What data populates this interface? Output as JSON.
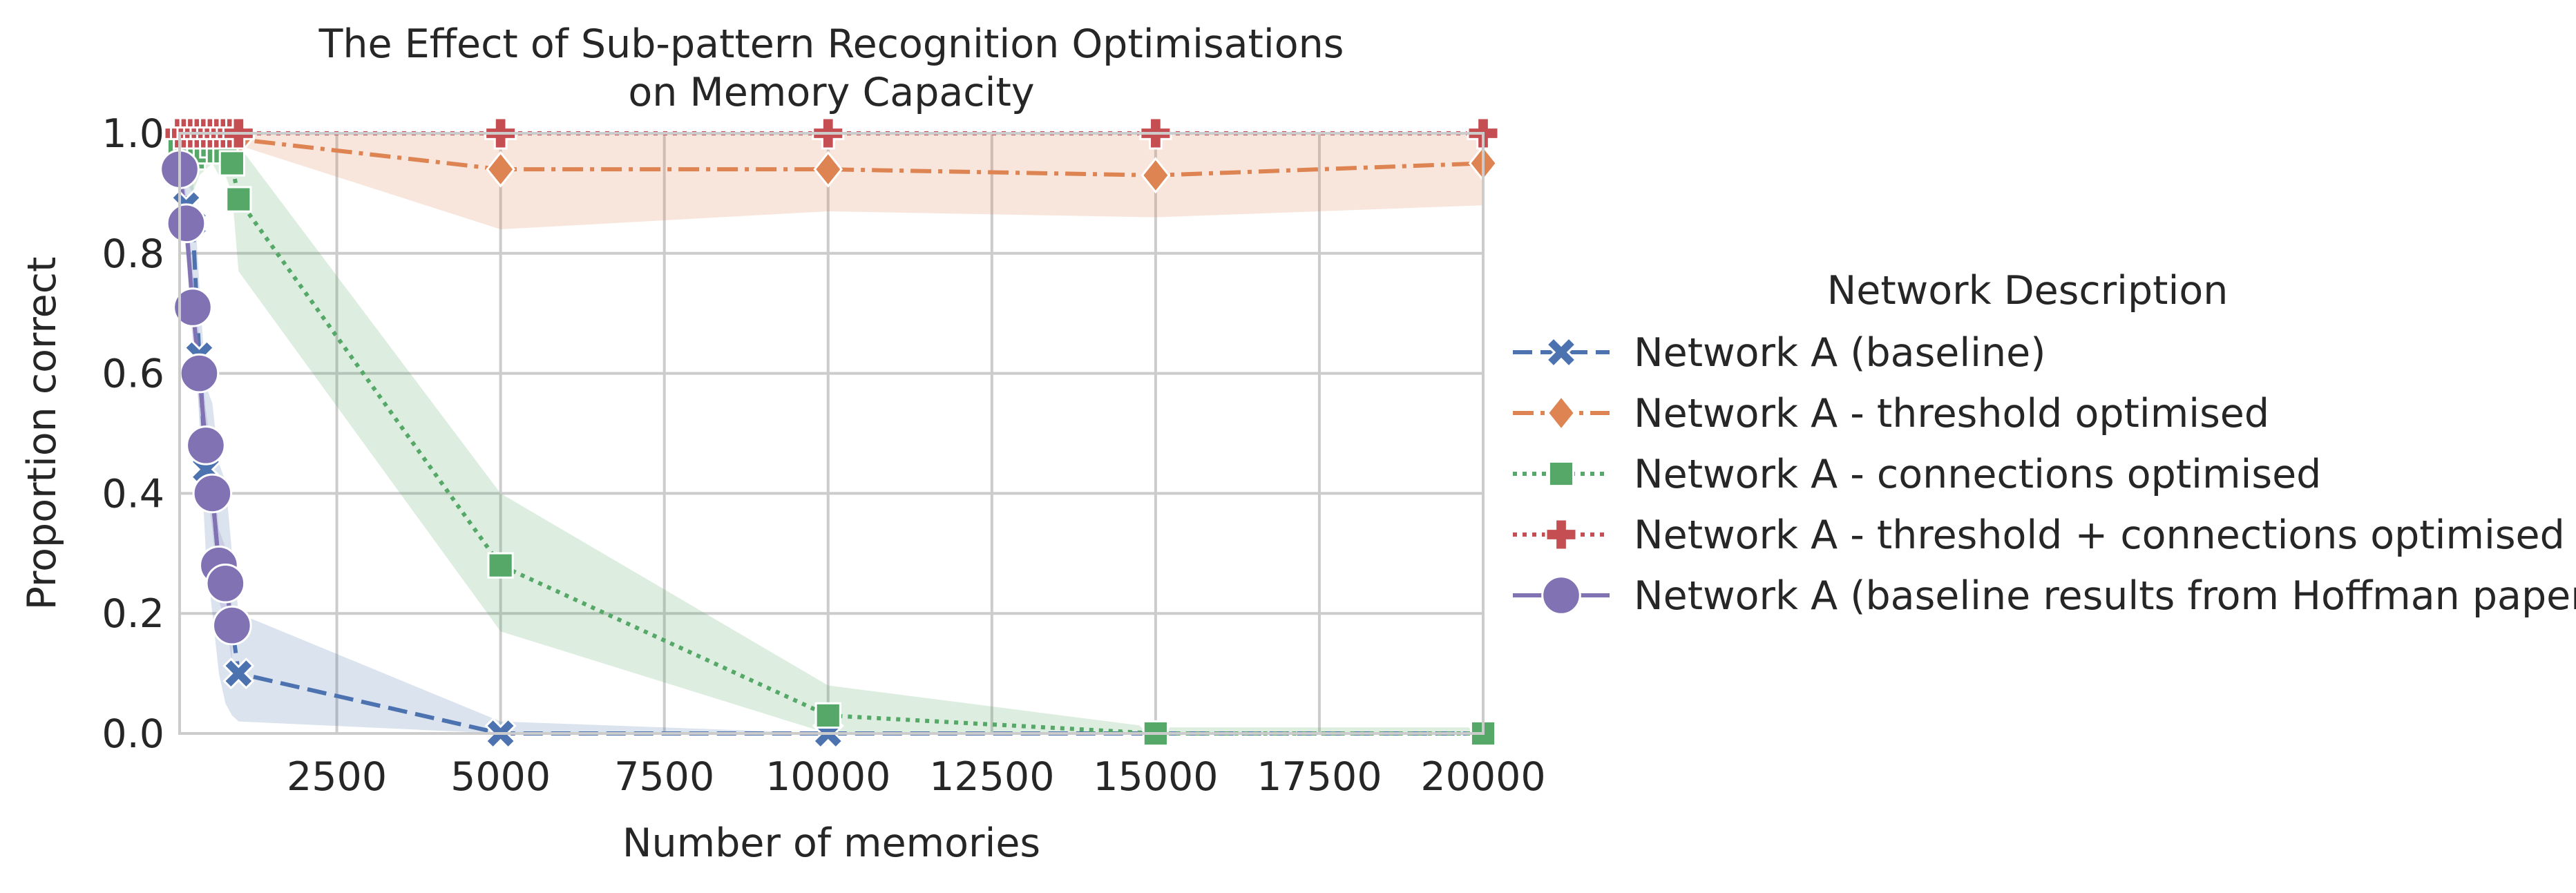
{
  "chart_data": {
    "type": "line",
    "title": "The Effect of Sub-pattern Recognition Optimisations\non Memory Capacity",
    "xlabel": "Number of memories",
    "ylabel": "Proportion correct",
    "xlim": [
      100,
      20000
    ],
    "ylim": [
      0.0,
      1.0
    ],
    "xticks": [
      2500,
      5000,
      7500,
      10000,
      12500,
      15000,
      17500,
      20000
    ],
    "xtick_labels": [
      "2500",
      "5000",
      "7500",
      "10000",
      "12500",
      "15000",
      "17500",
      "20000"
    ],
    "yticks": [
      0.0,
      0.2,
      0.4,
      0.6,
      0.8,
      1.0
    ],
    "ytick_labels": [
      "0.0",
      "0.2",
      "0.4",
      "0.6",
      "0.8",
      "1.0"
    ],
    "grid": true,
    "legend": {
      "title": "Network Description",
      "placement": "outside-right"
    },
    "series": [
      {
        "name": "Network A (baseline)",
        "color": "#4c72b0",
        "dash": "dashed",
        "marker": "x",
        "x": [
          100,
          200,
          300,
          400,
          500,
          600,
          700,
          800,
          900,
          1000,
          5000,
          10000,
          15000,
          20000
        ],
        "y": [
          0.94,
          0.88,
          0.85,
          0.63,
          0.44,
          0.4,
          0.28,
          0.25,
          0.18,
          0.1,
          0.0,
          0.0,
          0.0,
          0.0
        ],
        "lower": [
          0.92,
          0.8,
          0.75,
          0.52,
          0.3,
          0.2,
          0.1,
          0.05,
          0.03,
          0.02,
          0.0,
          0.0,
          0.0,
          0.0
        ],
        "upper": [
          0.97,
          0.95,
          0.93,
          0.75,
          0.58,
          0.55,
          0.45,
          0.42,
          0.3,
          0.2,
          0.02,
          0.0,
          0.0,
          0.0
        ]
      },
      {
        "name": "Network A - threshold optimised",
        "color": "#dd8452",
        "dash": "dashdot",
        "marker": "diamond",
        "x": [
          100,
          200,
          300,
          400,
          500,
          600,
          700,
          800,
          900,
          1000,
          5000,
          10000,
          15000,
          20000
        ],
        "y": [
          1.0,
          1.0,
          1.0,
          1.0,
          1.0,
          1.0,
          1.0,
          1.0,
          1.0,
          0.99,
          0.94,
          0.94,
          0.93,
          0.95
        ],
        "lower": [
          1.0,
          1.0,
          1.0,
          1.0,
          1.0,
          1.0,
          1.0,
          1.0,
          0.99,
          0.98,
          0.84,
          0.87,
          0.86,
          0.88
        ],
        "upper": [
          1.0,
          1.0,
          1.0,
          1.0,
          1.0,
          1.0,
          1.0,
          1.0,
          1.0,
          1.0,
          1.0,
          1.0,
          1.0,
          1.0
        ]
      },
      {
        "name": "Network A - connections optimised",
        "color": "#55a868",
        "dash": "dotted",
        "marker": "square",
        "x": [
          100,
          200,
          300,
          400,
          500,
          600,
          700,
          800,
          900,
          1000,
          5000,
          10000,
          15000,
          20000
        ],
        "y": [
          0.98,
          0.97,
          0.96,
          0.97,
          0.97,
          0.98,
          0.97,
          0.97,
          0.95,
          0.89,
          0.28,
          0.03,
          0.0,
          0.0
        ],
        "lower": [
          0.96,
          0.92,
          0.9,
          0.93,
          0.94,
          0.95,
          0.93,
          0.93,
          0.9,
          0.77,
          0.17,
          0.0,
          0.0,
          0.0
        ],
        "upper": [
          1.0,
          1.0,
          1.0,
          1.0,
          1.0,
          1.0,
          1.0,
          1.0,
          1.0,
          0.98,
          0.4,
          0.08,
          0.01,
          0.01
        ]
      },
      {
        "name": "Network A - threshold + connections optimised",
        "color": "#c44e52",
        "dash": "dotted",
        "marker": "plus",
        "x": [
          100,
          200,
          300,
          400,
          500,
          600,
          700,
          800,
          900,
          1000,
          5000,
          10000,
          15000,
          20000
        ],
        "y": [
          1.0,
          1.0,
          1.0,
          1.0,
          1.0,
          1.0,
          1.0,
          1.0,
          1.0,
          1.0,
          1.0,
          1.0,
          1.0,
          1.0
        ],
        "lower": [
          1.0,
          1.0,
          1.0,
          1.0,
          1.0,
          1.0,
          1.0,
          1.0,
          1.0,
          1.0,
          1.0,
          1.0,
          1.0,
          1.0
        ],
        "upper": [
          1.0,
          1.0,
          1.0,
          1.0,
          1.0,
          1.0,
          1.0,
          1.0,
          1.0,
          1.0,
          1.0,
          1.0,
          1.0,
          1.0
        ]
      },
      {
        "name": "Network A (baseline results from Hoffman paper)",
        "color": "#8172b3",
        "dash": "solid",
        "marker": "circle",
        "x": [
          100,
          200,
          300,
          400,
          500,
          600,
          700,
          800,
          900
        ],
        "y": [
          0.94,
          0.85,
          0.71,
          0.6,
          0.48,
          0.4,
          0.28,
          0.25,
          0.18
        ],
        "lower": [
          0.92,
          0.8,
          0.65,
          0.54,
          0.42,
          0.34,
          0.22,
          0.19,
          0.12
        ],
        "upper": [
          0.96,
          0.9,
          0.77,
          0.66,
          0.54,
          0.46,
          0.34,
          0.31,
          0.24
        ]
      }
    ]
  }
}
